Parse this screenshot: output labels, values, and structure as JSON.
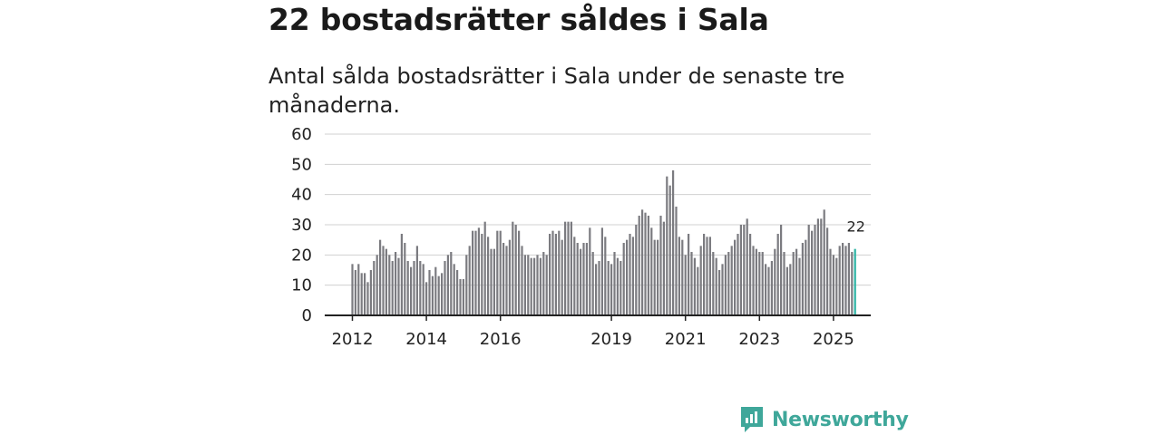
{
  "header": {
    "title": "22 bostadsrätter såldes i Sala",
    "subtitle": "Antal sålda bostadsrätter i Sala under de senaste tre månaderna."
  },
  "brand": {
    "name": "Newsworthy",
    "color": "#3fa79a"
  },
  "colors": {
    "bar": "#7b7b80",
    "highlight": "#2db3a4",
    "grid": "#d0d0d0",
    "axis": "#222222"
  },
  "chart_data": {
    "type": "bar",
    "title": "22 bostadsrätter såldes i Sala",
    "xlabel": "",
    "ylabel": "",
    "ylim": [
      0,
      60
    ],
    "yticks": [
      0,
      10,
      20,
      30,
      40,
      50,
      60
    ],
    "xtick_labels": [
      "2012",
      "2014",
      "2016",
      "2019",
      "2021",
      "2023",
      "2025"
    ],
    "xtick_index": [
      0,
      24,
      48,
      84,
      108,
      132,
      156
    ],
    "highlight_label": "22",
    "start": "2012-01",
    "values": [
      17,
      15,
      17,
      14,
      14,
      11,
      15,
      18,
      20,
      25,
      23,
      22,
      20,
      18,
      21,
      19,
      27,
      24,
      18,
      16,
      18,
      23,
      18,
      17,
      11,
      15,
      13,
      16,
      13,
      14,
      18,
      20,
      21,
      17,
      15,
      12,
      12,
      20,
      23,
      28,
      28,
      29,
      27,
      31,
      26,
      22,
      22,
      28,
      28,
      24,
      23,
      25,
      31,
      30,
      28,
      23,
      20,
      20,
      19,
      19,
      20,
      19,
      21,
      20,
      27,
      28,
      27,
      28,
      25,
      31,
      31,
      31,
      26,
      24,
      22,
      24,
      24,
      29,
      21,
      17,
      18,
      29,
      26,
      18,
      17,
      21,
      19,
      18,
      24,
      25,
      27,
      26,
      30,
      33,
      35,
      34,
      33,
      29,
      25,
      25,
      33,
      31,
      46,
      43,
      48,
      36,
      26,
      25,
      20,
      27,
      21,
      19,
      16,
      23,
      27,
      26,
      26,
      21,
      19,
      15,
      17,
      20,
      21,
      23,
      25,
      27,
      30,
      30,
      32,
      27,
      23,
      22,
      21,
      21,
      17,
      16,
      18,
      22,
      27,
      30,
      21,
      16,
      17,
      21,
      22,
      19,
      24,
      25,
      30,
      28,
      30,
      32,
      32,
      35,
      29,
      22,
      20,
      19,
      23,
      24,
      23,
      24,
      21,
      22
    ]
  }
}
